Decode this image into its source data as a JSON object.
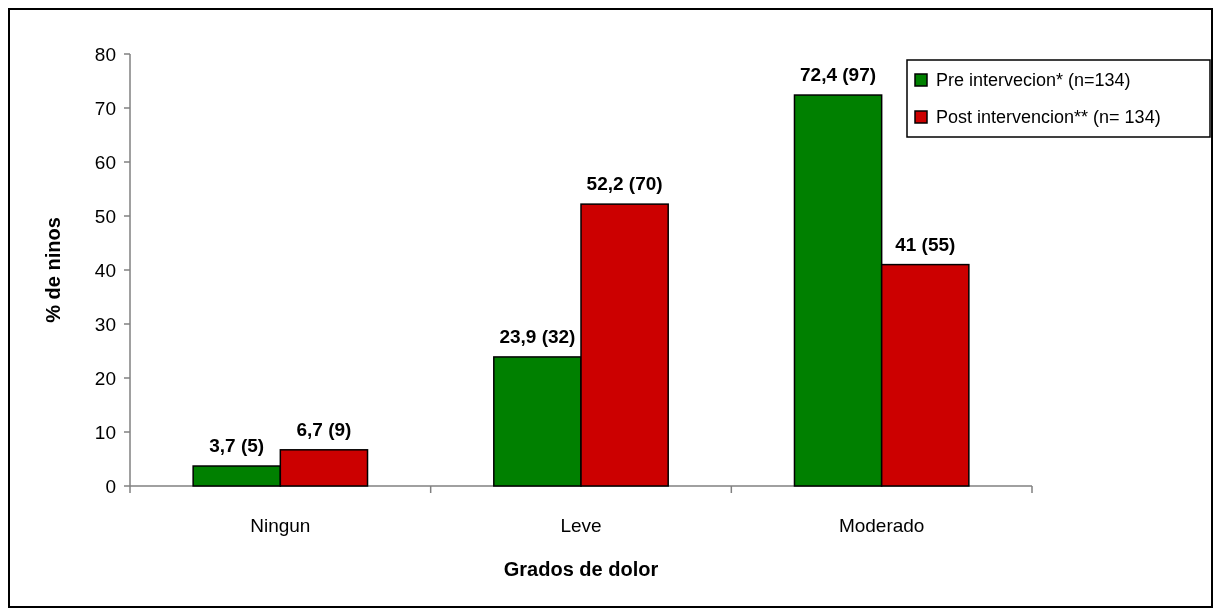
{
  "chart_data": {
    "type": "bar",
    "xlabel": "Grados de dolor",
    "ylabel": "% de ninos",
    "categories": [
      "Ningun",
      "Leve",
      "Moderado"
    ],
    "series": [
      {
        "name": "Pre intervecion* (n=134)",
        "color": "#008000",
        "values": [
          3.7,
          23.9,
          72.4
        ],
        "value_labels": [
          "3,7 (5)",
          "23,9 (32)",
          "72,4 (97)"
        ]
      },
      {
        "name": "Post intervencion** (n= 134)",
        "color": "#cc0000",
        "values": [
          6.7,
          52.2,
          41
        ],
        "value_labels": [
          "6,7 (9)",
          "52,2 (70)",
          "41 (55)"
        ]
      }
    ],
    "ylim": [
      0,
      80
    ],
    "yticks": [
      0,
      10,
      20,
      30,
      40,
      50,
      60,
      70,
      80
    ],
    "legend": "top right"
  }
}
